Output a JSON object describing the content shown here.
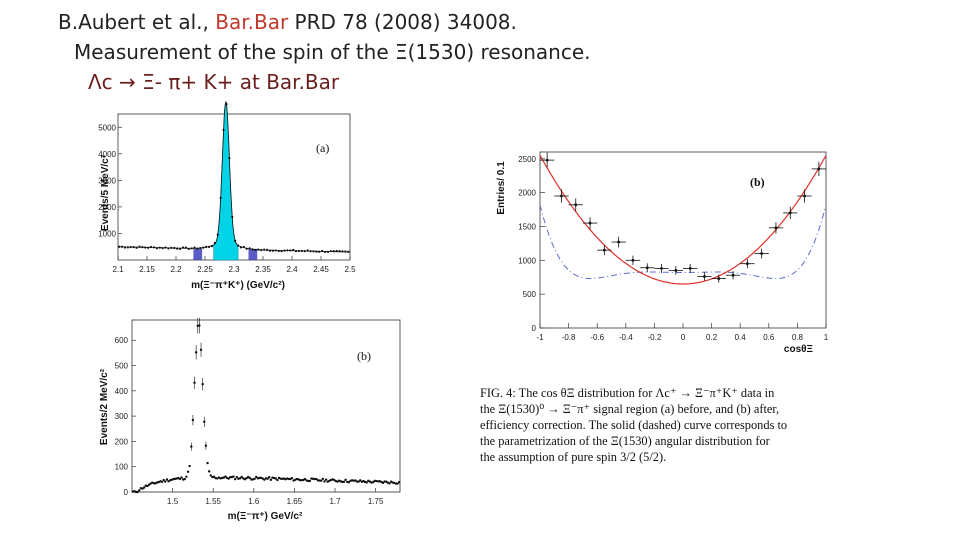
{
  "header": {
    "line1_prefix": "B.Aubert et al., ",
    "line1_accent": "Bar.Bar",
    "line1_suffix": " PRD 78 (2008) 34008.",
    "line2": "Measurement of the spin of the Ξ(1530) resonance.",
    "line3": "Λc → Ξ- π+ K+  at Bar.Bar"
  },
  "chart_data": [
    {
      "type": "histogram",
      "panel_label": "(a)",
      "xlabel": "m(Ξ⁻π⁺K⁺) (GeV/c²)",
      "ylabel": "Events/5 MeV/c²",
      "xlim": [
        2.1,
        2.5
      ],
      "ylim": [
        0,
        5500
      ],
      "xticks": [
        "2.1",
        "2.15",
        "2.2",
        "2.25",
        "2.3",
        "2.35",
        "2.4",
        "2.45",
        "2.5"
      ],
      "yticks": [
        "1000",
        "2000",
        "3000",
        "4000",
        "5000"
      ],
      "peak": {
        "x": 2.286,
        "y": 5300,
        "width": 0.006
      },
      "background_level": {
        "at_2.1": 500,
        "at_2.5": 300
      },
      "colors": {
        "signal": "#00d4e6",
        "sideband": "#4040c0"
      }
    },
    {
      "type": "scatter",
      "panel_label": "(b)",
      "xlabel": "m(Ξ⁻π⁺) GeV/c²",
      "ylabel": "Events/2 MeV/c²",
      "xlim": [
        1.45,
        1.78
      ],
      "ylim": [
        0,
        680
      ],
      "xticks": [
        "1.5",
        "1.55",
        "1.6",
        "1.65",
        "1.7",
        "1.75"
      ],
      "yticks": [
        "0",
        "100",
        "200",
        "300",
        "400",
        "500",
        "600"
      ],
      "peak": {
        "x": 1.532,
        "y": 640,
        "width": 0.005
      },
      "threshold": 1.459
    },
    {
      "type": "scatter",
      "panel_label": "(b)",
      "xlabel": "cosθΞ",
      "ylabel": "Entries/ 0.1",
      "xlim": [
        -1,
        1
      ],
      "ylim": [
        0,
        2600
      ],
      "xticks": [
        "-1",
        "-0.8",
        "-0.6",
        "-0.4",
        "-0.2",
        "0",
        "0.2",
        "0.4",
        "0.6",
        "0.8",
        "1"
      ],
      "yticks": [
        "0",
        "500",
        "1000",
        "1500",
        "2000",
        "2500"
      ],
      "points": {
        "x": [
          -0.95,
          -0.85,
          -0.75,
          -0.65,
          -0.55,
          -0.45,
          -0.35,
          -0.25,
          -0.15,
          -0.05,
          0.05,
          0.15,
          0.25,
          0.35,
          0.45,
          0.55,
          0.65,
          0.75,
          0.85,
          0.95
        ],
        "y": [
          2480,
          1950,
          1820,
          1550,
          1150,
          1270,
          1000,
          890,
          880,
          850,
          880,
          760,
          730,
          780,
          950,
          1100,
          1480,
          1700,
          1950,
          2350
        ]
      },
      "curves": [
        {
          "style": "solid",
          "color": "#e0302a"
        },
        {
          "style": "dashed",
          "color": "#5a6ad0"
        }
      ]
    }
  ],
  "caption": {
    "lines": [
      "FIG. 4: The cos θΞ   distribution for Λc⁺ → Ξ⁻π⁺K⁺ data in",
      "the Ξ(1530)⁰ → Ξ⁻π⁺ signal region (a) before, and (b) after,",
      "efficiency correction. The solid (dashed) curve corresponds to",
      "the parametrization of the Ξ(1530) angular distribution for",
      "the assumption of pure spin 3/2 (5/2)."
    ]
  }
}
